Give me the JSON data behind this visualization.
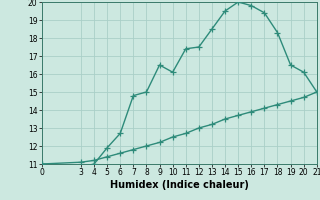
{
  "curve1_x": [
    0,
    3,
    4,
    5,
    6,
    7,
    8,
    9,
    10,
    11,
    12,
    13,
    14,
    15,
    16,
    17,
    18,
    19,
    20,
    21
  ],
  "curve1_y": [
    11,
    10.8,
    11.0,
    11.9,
    12.7,
    14.8,
    15.0,
    16.5,
    16.1,
    17.4,
    17.5,
    18.5,
    19.5,
    20.0,
    19.8,
    19.4,
    18.3,
    16.5,
    16.1,
    15.0
  ],
  "curve2_x": [
    0,
    3,
    4,
    5,
    6,
    7,
    8,
    9,
    10,
    11,
    12,
    13,
    14,
    15,
    16,
    17,
    18,
    19,
    20,
    21
  ],
  "curve2_y": [
    11.0,
    11.1,
    11.2,
    11.4,
    11.6,
    11.8,
    12.0,
    12.2,
    12.5,
    12.7,
    13.0,
    13.2,
    13.5,
    13.7,
    13.9,
    14.1,
    14.3,
    14.5,
    14.7,
    15.0
  ],
  "line_color": "#2e8b7a",
  "bg_color": "#cce8e0",
  "grid_color": "#aacfc8",
  "xlabel": "Humidex (Indice chaleur)",
  "xlim": [
    0,
    21
  ],
  "ylim": [
    11,
    20
  ],
  "xticks": [
    0,
    3,
    4,
    5,
    6,
    7,
    8,
    9,
    10,
    11,
    12,
    13,
    14,
    15,
    16,
    17,
    18,
    19,
    20,
    21
  ],
  "yticks": [
    11,
    12,
    13,
    14,
    15,
    16,
    17,
    18,
    19,
    20
  ],
  "marker": "+",
  "markersize": 4,
  "linewidth": 1.0,
  "xlabel_fontsize": 7,
  "tick_fontsize": 5.5
}
